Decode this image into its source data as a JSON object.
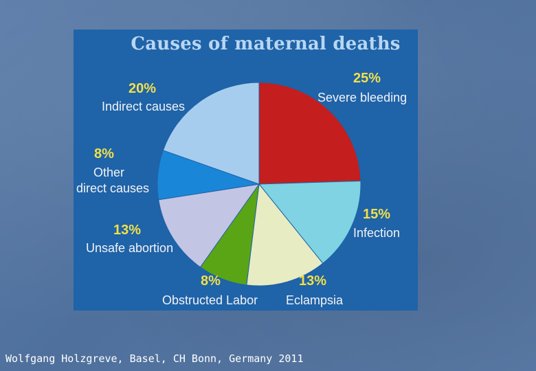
{
  "chart_data": {
    "type": "pie",
    "title": "Causes of maternal deaths",
    "slices": [
      {
        "label": "Severe bleeding",
        "percent_label": "25%",
        "value": 25,
        "color": "#c41e1e"
      },
      {
        "label": "Infection",
        "percent_label": "15%",
        "value": 15,
        "color": "#7fd3e2"
      },
      {
        "label": "Eclampsia",
        "percent_label": "13%",
        "value": 13,
        "color": "#e8ecc2"
      },
      {
        "label": "Obstructed Labor",
        "percent_label": "8%",
        "value": 8,
        "color": "#5aa516"
      },
      {
        "label": "Unsafe abortion",
        "percent_label": "13%",
        "value": 13,
        "color": "#c3c5e4"
      },
      {
        "label": "Other direct causes",
        "percent_label": "8%",
        "value": 8,
        "color": "#1a86d8"
      },
      {
        "label": "Indirect causes",
        "percent_label": "20%",
        "value": 20,
        "color": "#a7cdee"
      }
    ]
  },
  "labels": {
    "severe_bleeding": "Severe bleeding",
    "infection": "Infection",
    "eclampsia": "Eclampsia",
    "obstructed_labor": "Obstructed Labor",
    "unsafe_abortion": "Unsafe abortion",
    "other_direct_line1": "Other",
    "other_direct_line2": "direct causes",
    "indirect_causes": "Indirect causes"
  },
  "footer": "Wolfgang Holzgreve, Basel, CH Bonn, Germany 2011"
}
